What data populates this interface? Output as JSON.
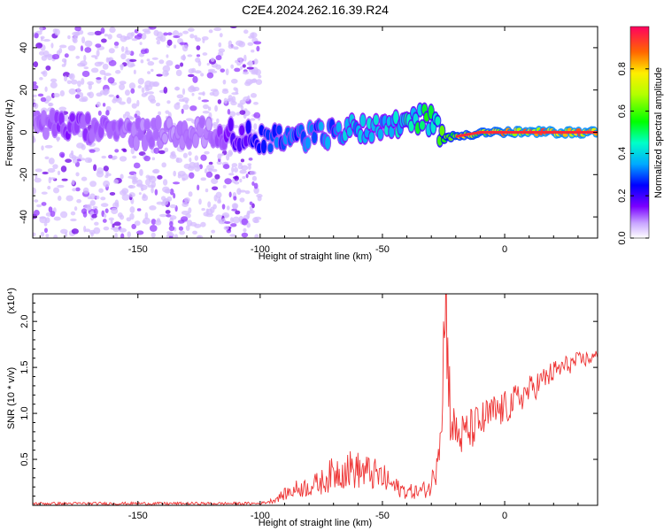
{
  "title": "C2E4.2024.262.16.39.R24",
  "colors": {
    "snr_line": "#ee3333",
    "axis": "#000000",
    "bright_scatter": "#8d00ff"
  },
  "chart_data": [
    {
      "type": "heatmap",
      "xlabel": "Height of straight line (km)",
      "ylabel": "Frequency (Hz)",
      "xlim": [
        -193,
        38
      ],
      "ylim": [
        -50,
        50
      ],
      "xticks": [
        -150,
        -100,
        -50,
        0
      ],
      "xtick_labels": [
        "-150",
        "-100",
        "-50",
        "0"
      ],
      "yticks": [
        -40,
        -20,
        0,
        20,
        40
      ],
      "ytick_labels": [
        "-40",
        "-20",
        "0",
        "20",
        "40"
      ],
      "colorbar": {
        "label": "Normalized spectral amplitude",
        "range": [
          0.0,
          1.0
        ],
        "ticks": [
          0.0,
          0.2,
          0.4,
          0.6,
          0.8
        ],
        "tick_labels": [
          "0.0",
          "0.2",
          "0.4",
          "0.6",
          "0.8"
        ]
      },
      "ridge": {
        "x": [
          -193,
          -180,
          -160,
          -140,
          -120,
          -100,
          -90,
          -80,
          -70,
          -60,
          -50,
          -40,
          -33,
          -28,
          -25,
          -20,
          -10,
          0,
          10,
          20,
          38
        ],
        "frequency": [
          5,
          3,
          0,
          0,
          0,
          -3,
          -2,
          -2,
          0,
          2,
          3,
          6,
          7,
          3,
          -3,
          -2,
          0,
          0,
          0,
          0,
          0
        ],
        "amplitude": [
          0.1,
          0.15,
          0.12,
          0.1,
          0.1,
          0.3,
          0.35,
          0.35,
          0.38,
          0.45,
          0.42,
          0.5,
          0.55,
          0.6,
          0.68,
          0.8,
          0.85,
          0.9,
          0.95,
          0.95,
          0.95
        ]
      }
    },
    {
      "type": "line",
      "xlabel": "Height of straight line (km)",
      "ylabel": "SNR (10 * v/v)",
      "scale_label": "(x10⁴)",
      "xlim": [
        -193,
        38
      ],
      "ylim": [
        0,
        2.3
      ],
      "xticks": [
        -150,
        -100,
        -50,
        0
      ],
      "xtick_labels": [
        "-150",
        "-100",
        "-50",
        "0"
      ],
      "yticks": [
        0.5,
        1.0,
        1.5,
        2.0
      ],
      "ytick_labels": [
        "0.5",
        "1.0",
        "1.5",
        "2.0"
      ],
      "series": [
        {
          "x": [
            -193,
            -180,
            -160,
            -140,
            -120,
            -100,
            -95,
            -90,
            -85,
            -80,
            -75,
            -70,
            -65,
            -60,
            -55,
            -50,
            -45,
            -40,
            -35,
            -30,
            -28,
            -26,
            -25,
            -24,
            -23,
            -22,
            -20,
            -18,
            -15,
            -10,
            -5,
            0,
            5,
            10,
            15,
            20,
            25,
            30,
            38
          ],
          "y": [
            0.02,
            0.02,
            0.02,
            0.02,
            0.02,
            0.02,
            0.05,
            0.12,
            0.18,
            0.2,
            0.25,
            0.35,
            0.4,
            0.38,
            0.35,
            0.3,
            0.2,
            0.15,
            0.15,
            0.2,
            0.5,
            0.9,
            1.7,
            2.3,
            1.5,
            0.9,
            0.8,
            0.75,
            0.8,
            0.9,
            1.0,
            1.05,
            1.15,
            1.25,
            1.35,
            1.45,
            1.52,
            1.57,
            1.62
          ]
        }
      ]
    }
  ]
}
